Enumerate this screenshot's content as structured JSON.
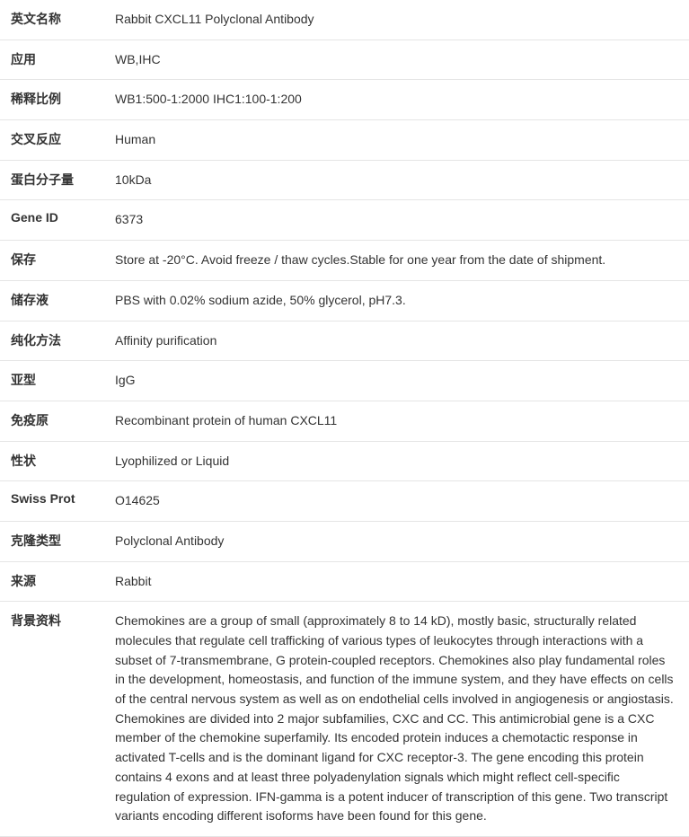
{
  "rows": [
    {
      "label": "英文名称",
      "value": "Rabbit CXCL11 Polyclonal Antibody"
    },
    {
      "label": "应用",
      "value": "WB,IHC"
    },
    {
      "label": "稀释比例",
      "value": "WB1:500-1:2000 IHC1:100-1:200"
    },
    {
      "label": "交叉反应",
      "value": "Human"
    },
    {
      "label": "蛋白分子量",
      "value": "10kDa"
    },
    {
      "label": "Gene ID",
      "value": "6373"
    },
    {
      "label": "保存",
      "value": "Store at -20°C. Avoid freeze / thaw cycles.Stable for one year from the date of shipment."
    },
    {
      "label": "储存液",
      "value": "PBS with 0.02% sodium azide, 50% glycerol, pH7.3."
    },
    {
      "label": "纯化方法",
      "value": "Affinity purification"
    },
    {
      "label": "亚型",
      "value": "IgG"
    },
    {
      "label": "免疫原",
      "value": "Recombinant protein of human CXCL11"
    },
    {
      "label": "性状",
      "value": "Lyophilized or Liquid"
    },
    {
      "label": "Swiss Prot",
      "value": "O14625"
    },
    {
      "label": "克隆类型",
      "value": "Polyclonal Antibody"
    },
    {
      "label": "来源",
      "value": "Rabbit"
    },
    {
      "label": "背景资料",
      "value": "Chemokines are a group of small (approximately 8 to 14 kD), mostly basic, structurally related molecules that regulate cell trafficking of various types of leukocytes through interactions with a subset of 7-transmembrane, G protein-coupled receptors. Chemokines also play fundamental roles in the development, homeostasis, and function of the immune system, and they have effects on cells of the central nervous system as well as on endothelial cells involved in angiogenesis or angiostasis. Chemokines are divided into 2 major subfamilies, CXC and CC. This antimicrobial gene is a CXC member of the chemokine superfamily. Its encoded protein induces a chemotactic response in activated T-cells and is the dominant ligand for CXC receptor-3. The gene encoding this protein contains 4 exons and at least three polyadenylation signals which might reflect cell-specific regulation of expression. IFN-gamma is a potent inducer of transcription of this gene. Two transcript variants encoding different isoforms have been found for this gene."
    }
  ]
}
